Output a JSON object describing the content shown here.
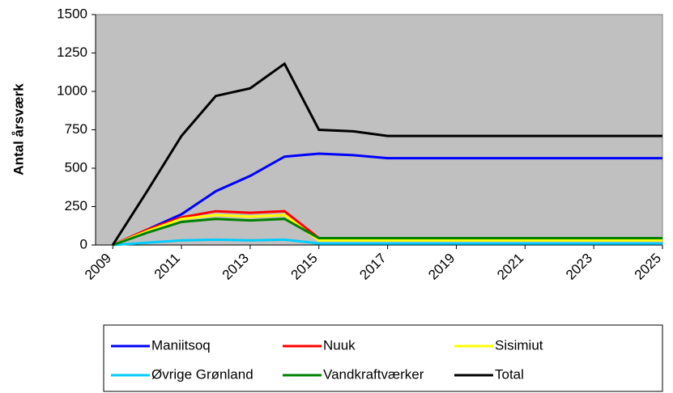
{
  "chart_data": {
    "type": "line",
    "y_label": "Antal årsværk",
    "x": [
      2009,
      2010,
      2011,
      2012,
      2013,
      2014,
      2015,
      2016,
      2017,
      2018,
      2019,
      2020,
      2021,
      2022,
      2023,
      2024,
      2025
    ],
    "xlim": [
      2008.5,
      2025
    ],
    "xticks": [
      2009,
      2011,
      2013,
      2015,
      2017,
      2019,
      2021,
      2023,
      2025
    ],
    "ylim": [
      0,
      1500
    ],
    "yticks": [
      0,
      250,
      500,
      750,
      1000,
      1250,
      1500
    ],
    "background": "#c0c0c0",
    "series": [
      {
        "name": "Maniitsoq",
        "color": "#0000ff",
        "values": [
          0,
          100,
          200,
          350,
          450,
          575,
          595,
          585,
          565,
          565,
          565,
          565,
          565,
          565,
          565,
          565,
          565
        ]
      },
      {
        "name": "Nuuk",
        "color": "#ff0000",
        "values": [
          0,
          100,
          180,
          220,
          210,
          220,
          45,
          45,
          45,
          45,
          45,
          45,
          45,
          45,
          45,
          45,
          45
        ]
      },
      {
        "name": "Sisimiut",
        "color": "#ffff00",
        "values": [
          0,
          90,
          170,
          195,
          185,
          195,
          30,
          30,
          30,
          30,
          30,
          30,
          30,
          30,
          30,
          30,
          30
        ]
      },
      {
        "name": "Øvrige Grønland",
        "color": "#00ccff",
        "values": [
          0,
          15,
          30,
          35,
          30,
          35,
          10,
          10,
          10,
          10,
          10,
          10,
          10,
          10,
          10,
          10,
          10
        ]
      },
      {
        "name": "Vandkraftværker",
        "color": "#008000",
        "values": [
          0,
          80,
          150,
          170,
          160,
          170,
          45,
          45,
          45,
          45,
          45,
          45,
          45,
          45,
          45,
          45,
          45
        ]
      },
      {
        "name": "Total",
        "color": "#000000",
        "values": [
          0,
          350,
          710,
          970,
          1020,
          1180,
          750,
          740,
          710,
          710,
          710,
          710,
          710,
          710,
          710,
          710,
          710
        ]
      }
    ],
    "legend": "bottom"
  }
}
